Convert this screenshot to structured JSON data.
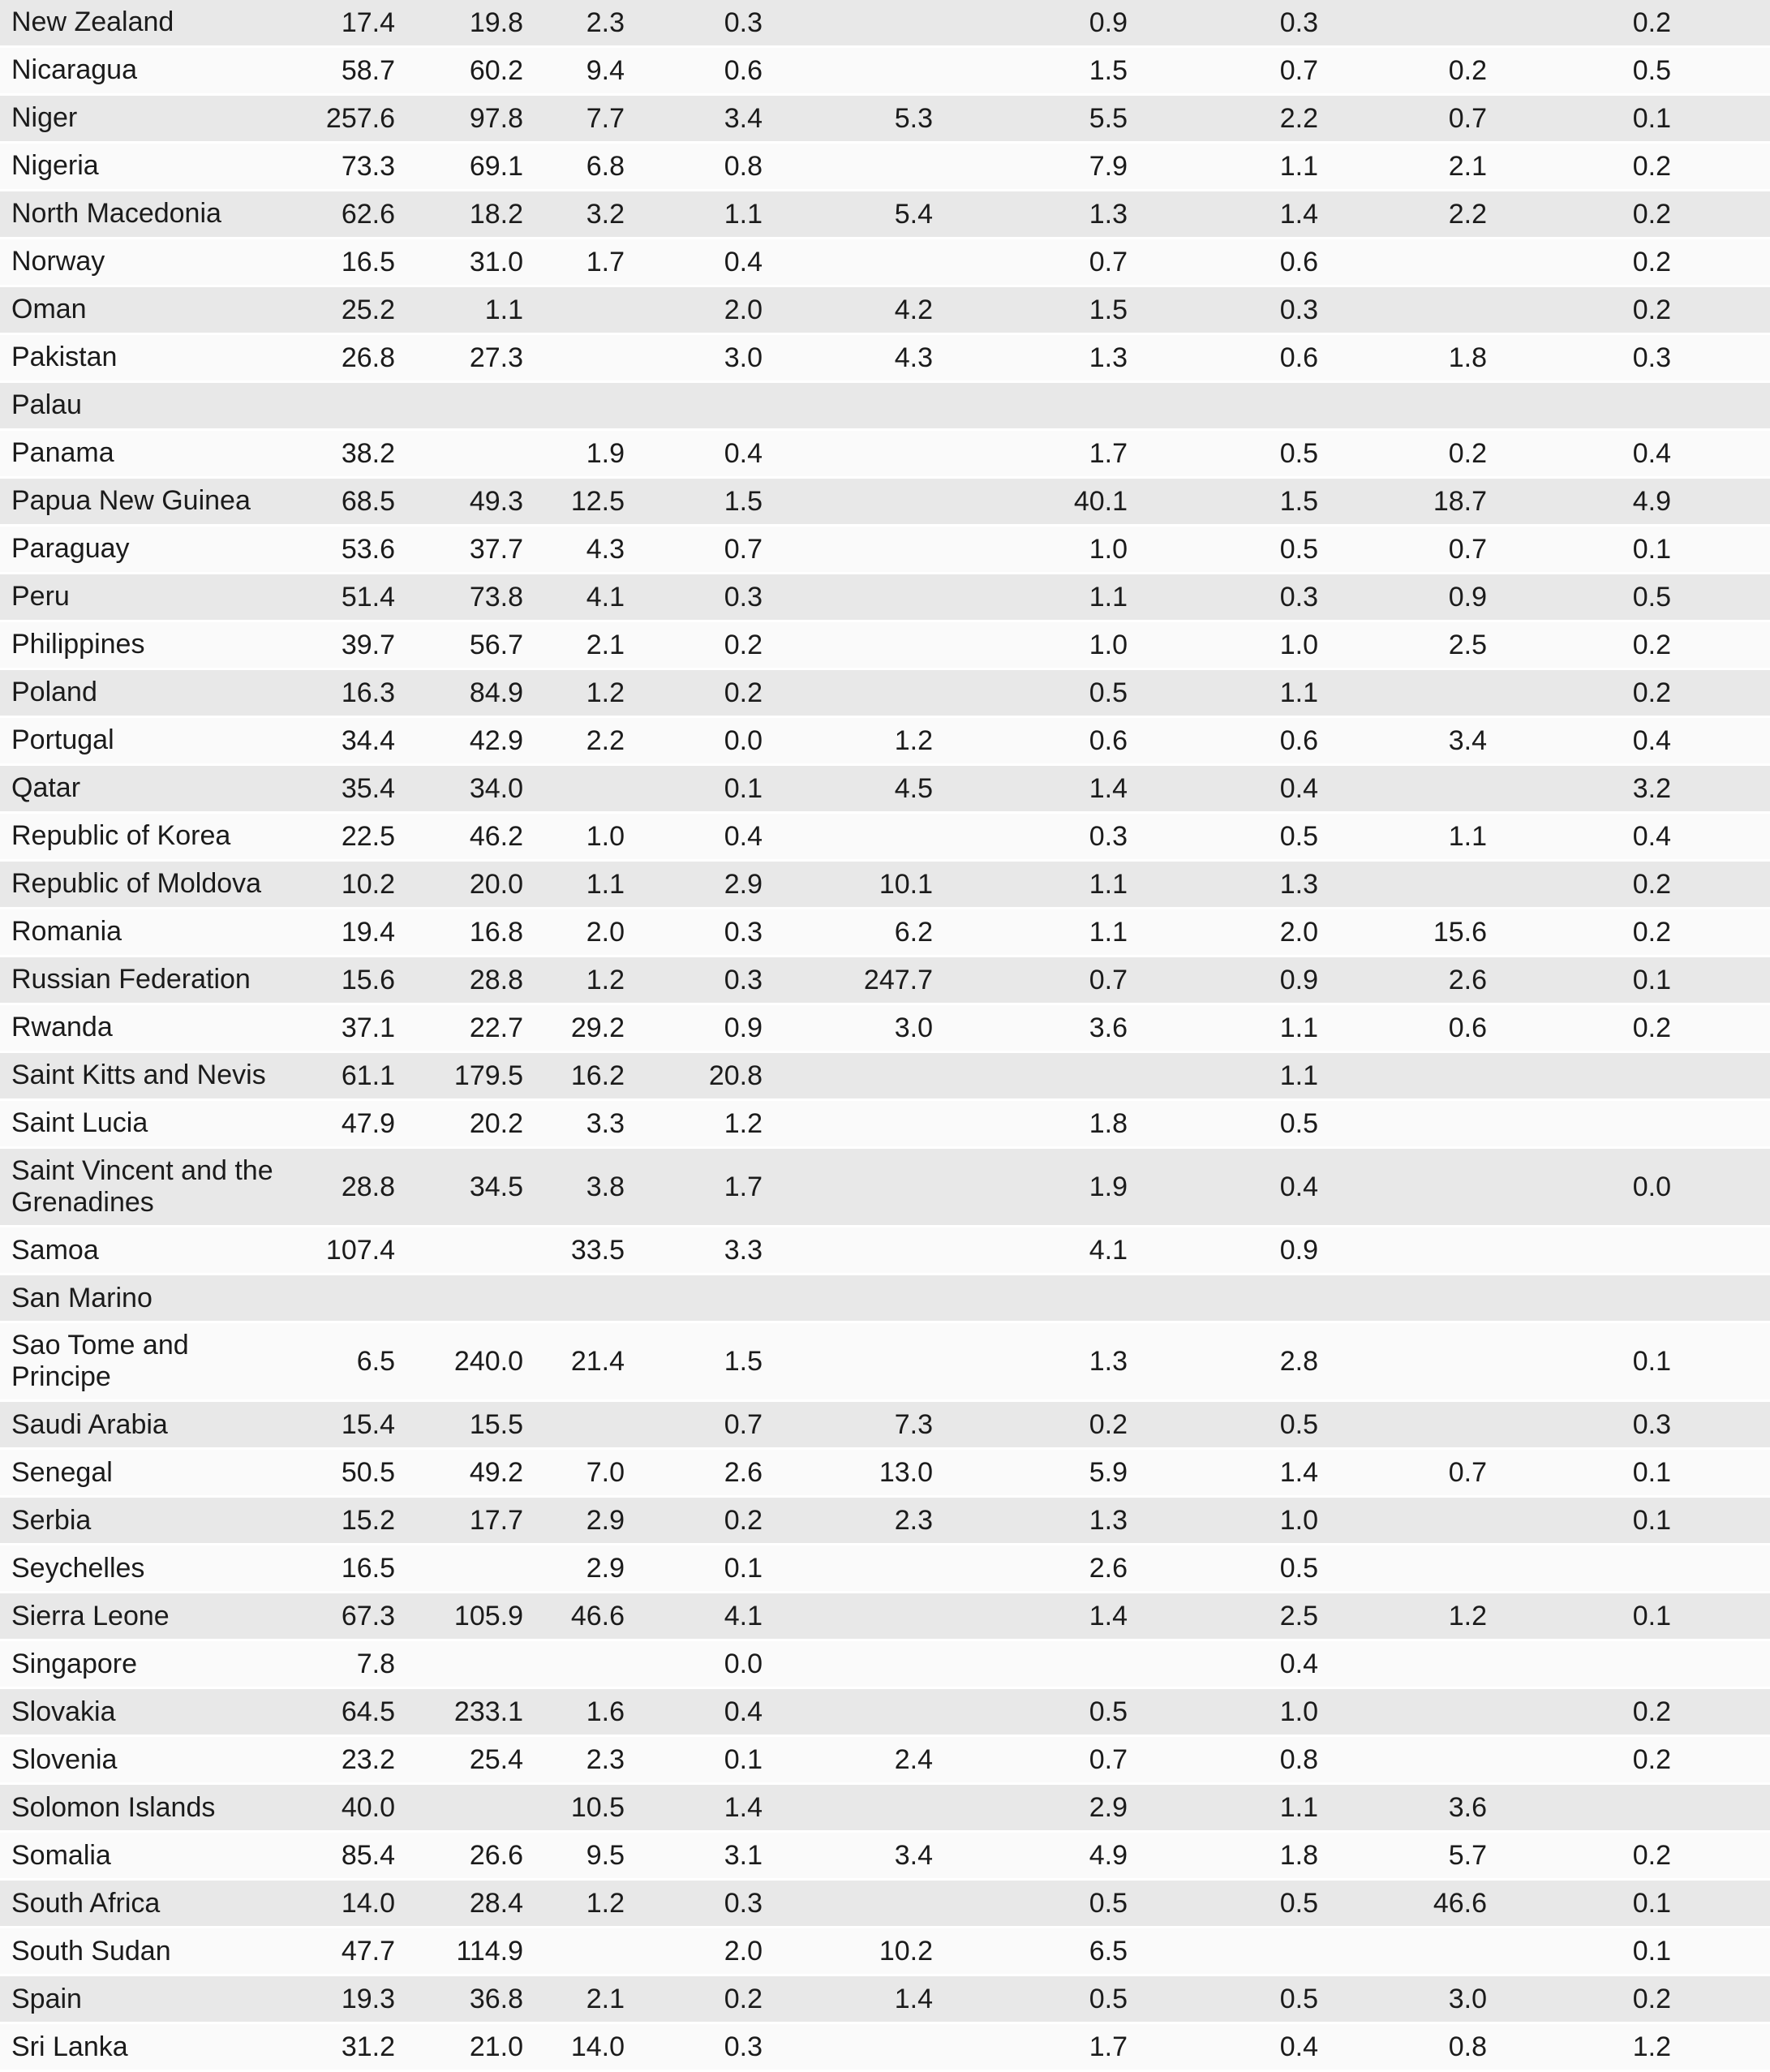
{
  "style": {
    "row_alt_color": "#e8e8e8",
    "row_base_color": "#fafafa",
    "text_color": "#1b1b1b"
  },
  "table": {
    "description": "Country statistics table, alternating striped rows, 9 numeric columns, no visible headers",
    "rows": [
      {
        "country": "New Zealand",
        "values": [
          "17.4",
          "19.8",
          "2.3",
          "0.3",
          "",
          "0.9",
          "0.3",
          "",
          "0.2"
        ]
      },
      {
        "country": "Nicaragua",
        "values": [
          "58.7",
          "60.2",
          "9.4",
          "0.6",
          "",
          "1.5",
          "0.7",
          "0.2",
          "0.5"
        ]
      },
      {
        "country": "Niger",
        "values": [
          "257.6",
          "97.8",
          "7.7",
          "3.4",
          "5.3",
          "5.5",
          "2.2",
          "0.7",
          "0.1"
        ]
      },
      {
        "country": "Nigeria",
        "values": [
          "73.3",
          "69.1",
          "6.8",
          "0.8",
          "",
          "7.9",
          "1.1",
          "2.1",
          "0.2"
        ]
      },
      {
        "country": "North Macedonia",
        "values": [
          "62.6",
          "18.2",
          "3.2",
          "1.1",
          "5.4",
          "1.3",
          "1.4",
          "2.2",
          "0.2"
        ]
      },
      {
        "country": "Norway",
        "values": [
          "16.5",
          "31.0",
          "1.7",
          "0.4",
          "",
          "0.7",
          "0.6",
          "",
          "0.2"
        ]
      },
      {
        "country": "Oman",
        "values": [
          "25.2",
          "1.1",
          "",
          "2.0",
          "4.2",
          "1.5",
          "0.3",
          "",
          "0.2"
        ]
      },
      {
        "country": "Pakistan",
        "values": [
          "26.8",
          "27.3",
          "",
          "3.0",
          "4.3",
          "1.3",
          "0.6",
          "1.8",
          "0.3"
        ]
      },
      {
        "country": "Palau",
        "values": [
          "",
          "",
          "",
          "",
          "",
          "",
          "",
          "",
          ""
        ]
      },
      {
        "country": "Panama",
        "values": [
          "38.2",
          "",
          "1.9",
          "0.4",
          "",
          "1.7",
          "0.5",
          "0.2",
          "0.4"
        ]
      },
      {
        "country": "Papua New Guinea",
        "values": [
          "68.5",
          "49.3",
          "12.5",
          "1.5",
          "",
          "40.1",
          "1.5",
          "18.7",
          "4.9"
        ]
      },
      {
        "country": "Paraguay",
        "values": [
          "53.6",
          "37.7",
          "4.3",
          "0.7",
          "",
          "1.0",
          "0.5",
          "0.7",
          "0.1"
        ]
      },
      {
        "country": "Peru",
        "values": [
          "51.4",
          "73.8",
          "4.1",
          "0.3",
          "",
          "1.1",
          "0.3",
          "0.9",
          "0.5"
        ]
      },
      {
        "country": "Philippines",
        "values": [
          "39.7",
          "56.7",
          "2.1",
          "0.2",
          "",
          "1.0",
          "1.0",
          "2.5",
          "0.2"
        ]
      },
      {
        "country": "Poland",
        "values": [
          "16.3",
          "84.9",
          "1.2",
          "0.2",
          "",
          "0.5",
          "1.1",
          "",
          "0.2"
        ]
      },
      {
        "country": "Portugal",
        "values": [
          "34.4",
          "42.9",
          "2.2",
          "0.0",
          "1.2",
          "0.6",
          "0.6",
          "3.4",
          "0.4"
        ]
      },
      {
        "country": "Qatar",
        "values": [
          "35.4",
          "34.0",
          "",
          "0.1",
          "4.5",
          "1.4",
          "0.4",
          "",
          "3.2"
        ]
      },
      {
        "country": "Republic of Korea",
        "values": [
          "22.5",
          "46.2",
          "1.0",
          "0.4",
          "",
          "0.3",
          "0.5",
          "1.1",
          "0.4"
        ]
      },
      {
        "country": "Republic of Moldova",
        "values": [
          "10.2",
          "20.0",
          "1.1",
          "2.9",
          "10.1",
          "1.1",
          "1.3",
          "",
          "0.2"
        ]
      },
      {
        "country": "Romania",
        "values": [
          "19.4",
          "16.8",
          "2.0",
          "0.3",
          "6.2",
          "1.1",
          "2.0",
          "15.6",
          "0.2"
        ]
      },
      {
        "country": "Russian Federation",
        "values": [
          "15.6",
          "28.8",
          "1.2",
          "0.3",
          "247.7",
          "0.7",
          "0.9",
          "2.6",
          "0.1"
        ]
      },
      {
        "country": "Rwanda",
        "values": [
          "37.1",
          "22.7",
          "29.2",
          "0.9",
          "3.0",
          "3.6",
          "1.1",
          "0.6",
          "0.2"
        ]
      },
      {
        "country": "Saint Kitts and Nevis",
        "values": [
          "61.1",
          "179.5",
          "16.2",
          "20.8",
          "",
          "",
          "1.1",
          "",
          ""
        ]
      },
      {
        "country": "Saint Lucia",
        "values": [
          "47.9",
          "20.2",
          "3.3",
          "1.2",
          "",
          "1.8",
          "0.5",
          "",
          ""
        ]
      },
      {
        "country": "Saint Vincent and the Grenadines",
        "values": [
          "28.8",
          "34.5",
          "3.8",
          "1.7",
          "",
          "1.9",
          "0.4",
          "",
          "0.0"
        ]
      },
      {
        "country": "Samoa",
        "values": [
          "107.4",
          "",
          "33.5",
          "3.3",
          "",
          "4.1",
          "0.9",
          "",
          ""
        ]
      },
      {
        "country": "San Marino",
        "values": [
          "",
          "",
          "",
          "",
          "",
          "",
          "",
          "",
          ""
        ]
      },
      {
        "country": "Sao Tome and Principe",
        "values": [
          "6.5",
          "240.0",
          "21.4",
          "1.5",
          "",
          "1.3",
          "2.8",
          "",
          "0.1"
        ]
      },
      {
        "country": "Saudi Arabia",
        "values": [
          "15.4",
          "15.5",
          "",
          "0.7",
          "7.3",
          "0.2",
          "0.5",
          "",
          "0.3"
        ]
      },
      {
        "country": "Senegal",
        "values": [
          "50.5",
          "49.2",
          "7.0",
          "2.6",
          "13.0",
          "5.9",
          "1.4",
          "0.7",
          "0.1"
        ]
      },
      {
        "country": "Serbia",
        "values": [
          "15.2",
          "17.7",
          "2.9",
          "0.2",
          "2.3",
          "1.3",
          "1.0",
          "",
          "0.1"
        ]
      },
      {
        "country": "Seychelles",
        "values": [
          "16.5",
          "",
          "2.9",
          "0.1",
          "",
          "2.6",
          "0.5",
          "",
          ""
        ]
      },
      {
        "country": "Sierra Leone",
        "values": [
          "67.3",
          "105.9",
          "46.6",
          "4.1",
          "",
          "1.4",
          "2.5",
          "1.2",
          "0.1"
        ]
      },
      {
        "country": "Singapore",
        "values": [
          "7.8",
          "",
          "",
          "0.0",
          "",
          "",
          "0.4",
          "",
          ""
        ]
      },
      {
        "country": "Slovakia",
        "values": [
          "64.5",
          "233.1",
          "1.6",
          "0.4",
          "",
          "0.5",
          "1.0",
          "",
          "0.2"
        ]
      },
      {
        "country": "Slovenia",
        "values": [
          "23.2",
          "25.4",
          "2.3",
          "0.1",
          "2.4",
          "0.7",
          "0.8",
          "",
          "0.2"
        ]
      },
      {
        "country": "Solomon Islands",
        "values": [
          "40.0",
          "",
          "10.5",
          "1.4",
          "",
          "2.9",
          "1.1",
          "3.6",
          ""
        ]
      },
      {
        "country": "Somalia",
        "values": [
          "85.4",
          "26.6",
          "9.5",
          "3.1",
          "3.4",
          "4.9",
          "1.8",
          "5.7",
          "0.2"
        ]
      },
      {
        "country": "South Africa",
        "values": [
          "14.0",
          "28.4",
          "1.2",
          "0.3",
          "",
          "0.5",
          "0.5",
          "46.6",
          "0.1"
        ]
      },
      {
        "country": "South Sudan",
        "values": [
          "47.7",
          "114.9",
          "",
          "2.0",
          "10.2",
          "6.5",
          "",
          "",
          "0.1"
        ]
      },
      {
        "country": "Spain",
        "values": [
          "19.3",
          "36.8",
          "2.1",
          "0.2",
          "1.4",
          "0.5",
          "0.5",
          "3.0",
          "0.2"
        ]
      },
      {
        "country": "Sri Lanka",
        "values": [
          "31.2",
          "21.0",
          "14.0",
          "0.3",
          "",
          "1.7",
          "0.4",
          "0.8",
          "1.2"
        ]
      }
    ]
  }
}
